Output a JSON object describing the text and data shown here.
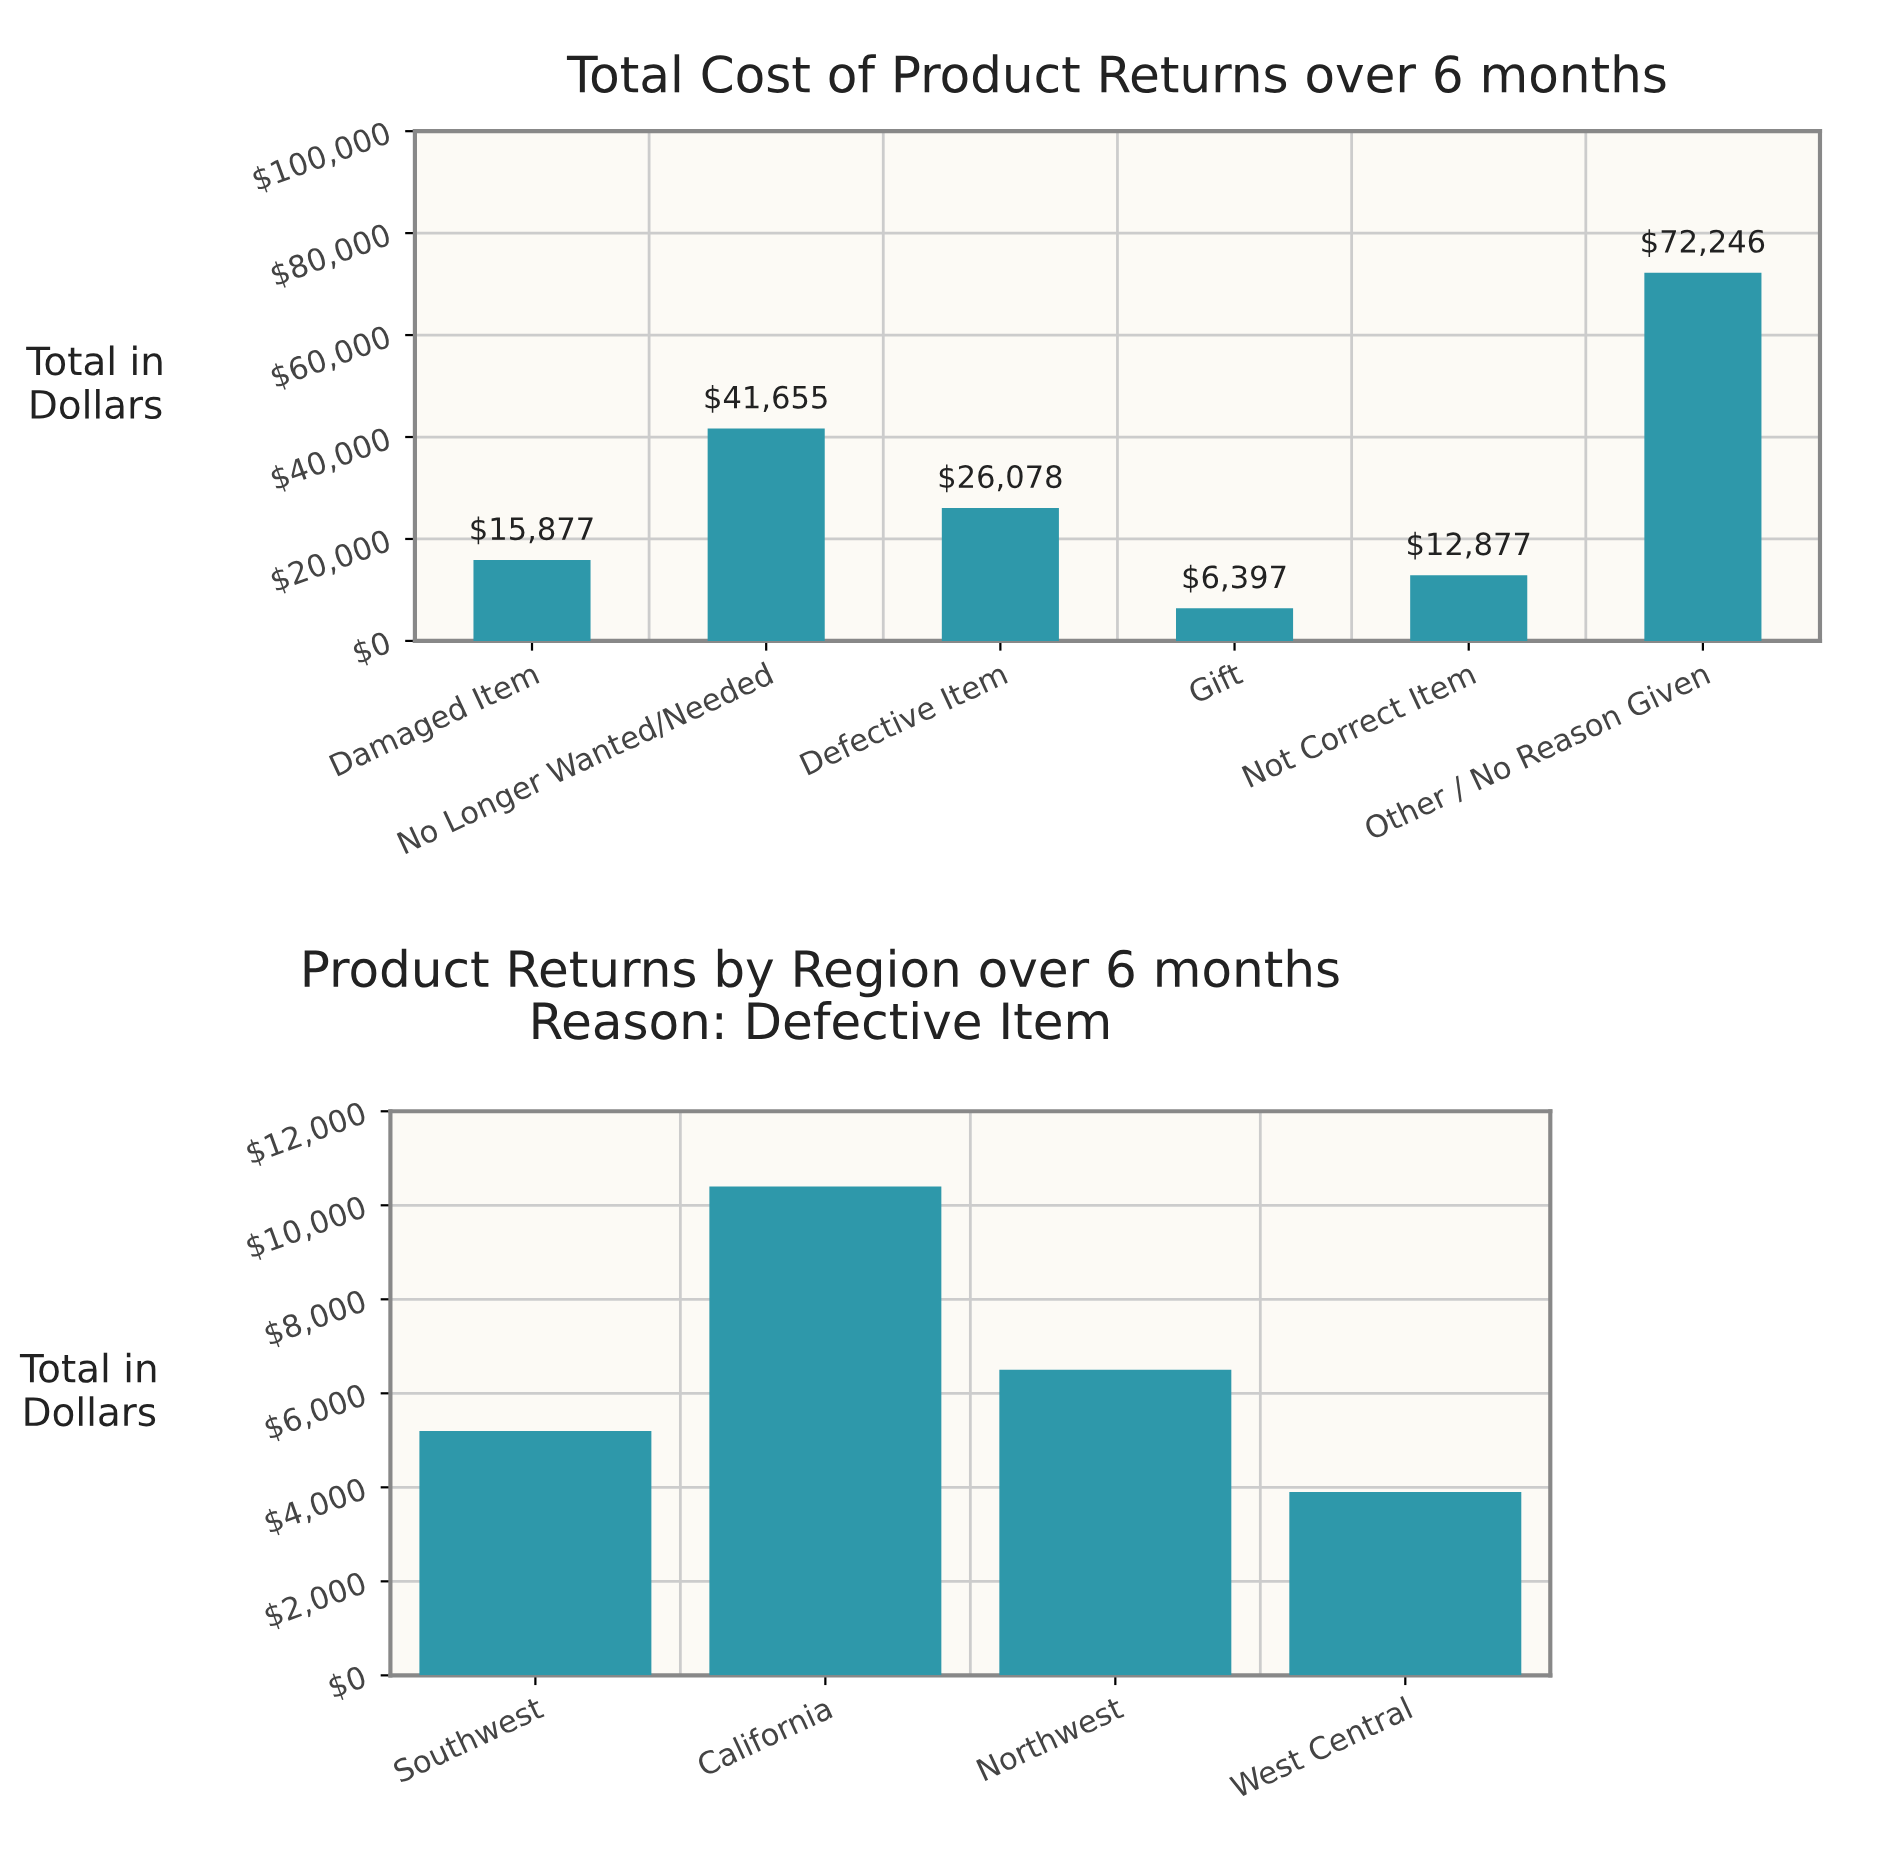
{
  "chart_data": [
    {
      "type": "bar",
      "title": "Total Cost of Product Returns over 6 months",
      "ylabel": "Total in\nDollars",
      "categories": [
        "Damaged Item",
        "No Longer Wanted/Needed",
        "Defective Item",
        "Gift",
        "Not Correct Item",
        "Other / No Reason Given"
      ],
      "values": [
        15877,
        41655,
        26078,
        6397,
        12877,
        72246
      ],
      "value_labels": [
        "$15,877",
        "$41,655",
        "$26,078",
        "$6,397",
        "$12,877",
        "$72,246"
      ],
      "color": "#2e98aa",
      "ylim": [
        0,
        100000
      ],
      "yticks": [
        {
          "value": 0,
          "label": "$0"
        },
        {
          "value": 20000,
          "label": "$20,000"
        },
        {
          "value": 40000,
          "label": "$40,000"
        },
        {
          "value": 60000,
          "label": "$60,000"
        },
        {
          "value": 80000,
          "label": "$80,000"
        },
        {
          "value": 100000,
          "label": "$100,000"
        }
      ],
      "grid": true,
      "legend": false
    },
    {
      "type": "bar",
      "title": "Product Returns by Region over 6 months",
      "subtitle": "Reason: Defective Item",
      "ylabel": "Total in\nDollars",
      "categories": [
        "Southwest",
        "California",
        "Northwest",
        "West Central"
      ],
      "values": [
        5200,
        10400,
        6500,
        3900
      ],
      "color": "#2e98aa",
      "ylim": [
        0,
        12000
      ],
      "yticks": [
        {
          "value": 0,
          "label": "$0"
        },
        {
          "value": 2000,
          "label": "$2,000"
        },
        {
          "value": 4000,
          "label": "$4,000"
        },
        {
          "value": 6000,
          "label": "$6,000"
        },
        {
          "value": 8000,
          "label": "$8,000"
        },
        {
          "value": 10000,
          "label": "$10,000"
        },
        {
          "value": 12000,
          "label": "$12,000"
        }
      ],
      "grid": true,
      "legend": false
    }
  ]
}
